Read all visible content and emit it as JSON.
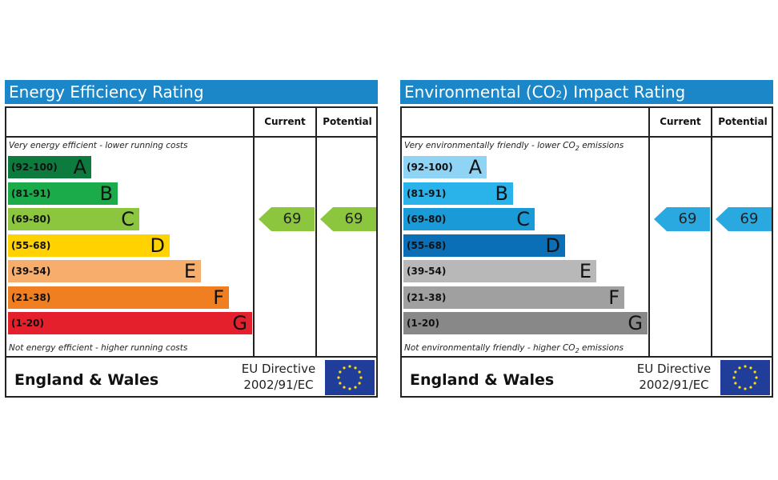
{
  "chart_data": [
    {
      "type": "bar",
      "title": "Energy Efficiency Rating",
      "columns": [
        "Current",
        "Potential"
      ],
      "note_top": "Very energy efficient - lower running costs",
      "note_bottom": "Not energy efficient - higher running costs",
      "categories": [
        "A",
        "B",
        "C",
        "D",
        "E",
        "F",
        "G"
      ],
      "ranges": [
        "(92-100)",
        "(81-91)",
        "(69-80)",
        "(55-68)",
        "(39-54)",
        "(21-38)",
        "(1-20)"
      ],
      "colors": [
        "#0d7a3e",
        "#1bab4b",
        "#8cc63f",
        "#ffd200",
        "#f7ad6b",
        "#f07f22",
        "#e3202b"
      ],
      "current": 69,
      "potential": 69,
      "current_band": "C",
      "potential_band": "C",
      "arrow_color": "#8cc63f",
      "region": "England & Wales",
      "directive": [
        "EU Directive",
        "2002/91/EC"
      ],
      "flag_icon": "eu-flag-icon"
    },
    {
      "type": "bar",
      "title": "Environmental (CO2) Impact Rating",
      "title_parts": [
        "Environmental (CO",
        "2",
        ") Impact Rating"
      ],
      "columns": [
        "Current",
        "Potential"
      ],
      "note_top_parts": [
        "Very environmentally friendly - lower CO",
        "2",
        " emissions"
      ],
      "note_bottom_parts": [
        "Not environmentally friendly - higher CO",
        "2",
        " emissions"
      ],
      "categories": [
        "A",
        "B",
        "C",
        "D",
        "E",
        "F",
        "G"
      ],
      "ranges": [
        "(92-100)",
        "(81-91)",
        "(69-80)",
        "(55-68)",
        "(39-54)",
        "(21-38)",
        "(1-20)"
      ],
      "colors": [
        "#8fd3f5",
        "#29b3ea",
        "#1a9ad6",
        "#0b6fb8",
        "#b8b8b8",
        "#a0a0a0",
        "#888888"
      ],
      "current": 69,
      "potential": 69,
      "current_band": "C",
      "potential_band": "C",
      "arrow_color": "#29a9e0",
      "region": "England & Wales",
      "directive": [
        "EU Directive",
        "2002/91/EC"
      ],
      "flag_icon": "eu-flag-icon"
    }
  ]
}
